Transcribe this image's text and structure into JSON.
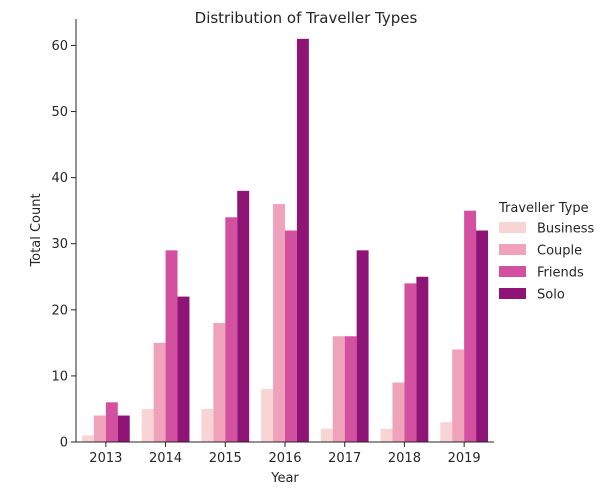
{
  "chart_data": {
    "type": "bar",
    "title": "Distribution of Traveller Types",
    "xlabel": "Year",
    "ylabel": "Total Count",
    "ylim": [
      0,
      64
    ],
    "yticks": [
      0,
      10,
      20,
      30,
      40,
      50,
      60
    ],
    "categories": [
      "2013",
      "2014",
      "2015",
      "2016",
      "2017",
      "2018",
      "2019"
    ],
    "grid": false,
    "legend": {
      "title": "Traveller Type",
      "position": "right"
    },
    "series": [
      {
        "name": "Business",
        "color": "#f9d4d4",
        "values": [
          1,
          5,
          5,
          8,
          2,
          2,
          3
        ]
      },
      {
        "name": "Couple",
        "color": "#f1a2bb",
        "values": [
          4,
          15,
          18,
          36,
          16,
          9,
          14
        ]
      },
      {
        "name": "Friends",
        "color": "#d2509f",
        "values": [
          6,
          29,
          34,
          32,
          16,
          24,
          35
        ]
      },
      {
        "name": "Solo",
        "color": "#8e1576",
        "values": [
          4,
          22,
          38,
          61,
          29,
          25,
          32
        ]
      }
    ]
  }
}
